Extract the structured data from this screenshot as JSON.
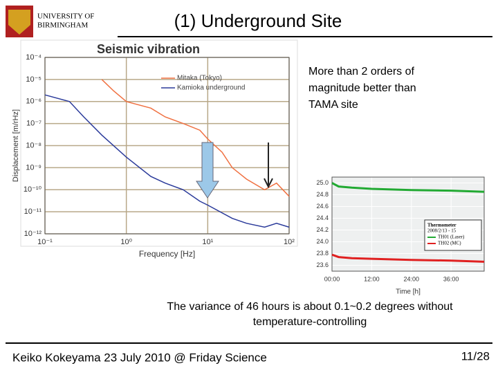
{
  "header": {
    "logo": [
      "UNIVERSITY OF",
      "BIRMINGHAM"
    ],
    "title": "(1) Underground Site"
  },
  "note": "More than 2 orders of magnitude better than TAMA site",
  "caption": "The variance of 46 hours is about 0.1~0.2 degrees without temperature-controlling",
  "footer": {
    "author": "Keiko Kokeyama 23 July 2010 @ Friday Science",
    "page": "11/28"
  },
  "chart_data": [
    {
      "type": "line",
      "title": "Seismic vibration",
      "x_label": "Frequency [Hz]",
      "y_label": "Displacement [m/rHz]",
      "log_x": true,
      "log_y": true,
      "grid": true,
      "xlim": [
        0.1,
        100
      ],
      "ylim": [
        1e-12,
        0.0001
      ],
      "xticks": [
        {
          "value": 0.1,
          "label": "10⁻¹"
        },
        {
          "value": 1,
          "label": "10⁰"
        },
        {
          "value": 10,
          "label": "10¹"
        },
        {
          "value": 100,
          "label": "10²"
        }
      ],
      "yticks": [
        {
          "value": 1e-12,
          "label": "10⁻¹²"
        },
        {
          "value": 1e-11,
          "label": "10⁻¹¹"
        },
        {
          "value": 1e-10,
          "label": "10⁻¹⁰"
        },
        {
          "value": 1e-09,
          "label": "10⁻⁹"
        },
        {
          "value": 1e-08,
          "label": "10⁻⁸"
        },
        {
          "value": 1e-07,
          "label": "10⁻⁷"
        },
        {
          "value": 1e-06,
          "label": "10⁻⁶"
        },
        {
          "value": 1e-05,
          "label": "10⁻⁵"
        },
        {
          "value": 0.0001,
          "label": "10⁻⁴"
        }
      ],
      "series": [
        {
          "name": "Mitaka (Tokyo)",
          "color": "#f07040",
          "x": [
            0.5,
            0.7,
            1,
            2,
            3,
            5,
            8,
            10,
            15,
            20,
            30,
            50,
            70,
            100
          ],
          "values": [
            1e-05,
            3e-06,
            1e-06,
            5e-07,
            2e-07,
            1e-07,
            5e-08,
            2e-08,
            5e-09,
            1e-09,
            3e-10,
            1e-10,
            2e-10,
            5e-11
          ]
        },
        {
          "name": "Kamioka underground",
          "color": "#2a3a9a",
          "x": [
            0.1,
            0.2,
            0.3,
            0.5,
            1,
            2,
            3,
            5,
            8,
            10,
            20,
            30,
            50,
            70,
            100
          ],
          "values": [
            2e-06,
            1e-06,
            2e-07,
            3e-08,
            3e-09,
            4e-10,
            2e-10,
            1e-10,
            3e-11,
            2e-11,
            5e-12,
            3e-12,
            2e-12,
            3e-12,
            2e-12
          ]
        }
      ]
    },
    {
      "type": "line",
      "x_label": "Time [h]",
      "title": "Thermometer",
      "subtitle": "2008/2/13 - 15",
      "log_x": false,
      "log_y": false,
      "grid": true,
      "xlim": [
        0,
        46
      ],
      "ylim": [
        23.5,
        25.1
      ],
      "xticks": [
        {
          "value": 0,
          "label": "00:00"
        },
        {
          "value": 12,
          "label": "12:00"
        },
        {
          "value": 24,
          "label": "24:00"
        },
        {
          "value": 36,
          "label": "36:00"
        }
      ],
      "yticks": [
        23.6,
        23.8,
        {
          "value": 24,
          "label": "24.0"
        },
        24.2,
        24.4,
        24.6,
        24.8,
        {
          "value": 25,
          "label": "25.0"
        }
      ],
      "series": [
        {
          "name": "TH01 (Laser)",
          "color": "#22aa33",
          "x": [
            0,
            2,
            6,
            12,
            24,
            36,
            46
          ],
          "values": [
            25.0,
            24.94,
            24.92,
            24.9,
            24.88,
            24.87,
            24.85
          ]
        },
        {
          "name": "TH02 (MC)",
          "color": "#e02020",
          "x": [
            0,
            2,
            6,
            12,
            24,
            36,
            46
          ],
          "values": [
            23.78,
            23.74,
            23.72,
            23.71,
            23.69,
            23.68,
            23.66
          ]
        }
      ]
    }
  ]
}
